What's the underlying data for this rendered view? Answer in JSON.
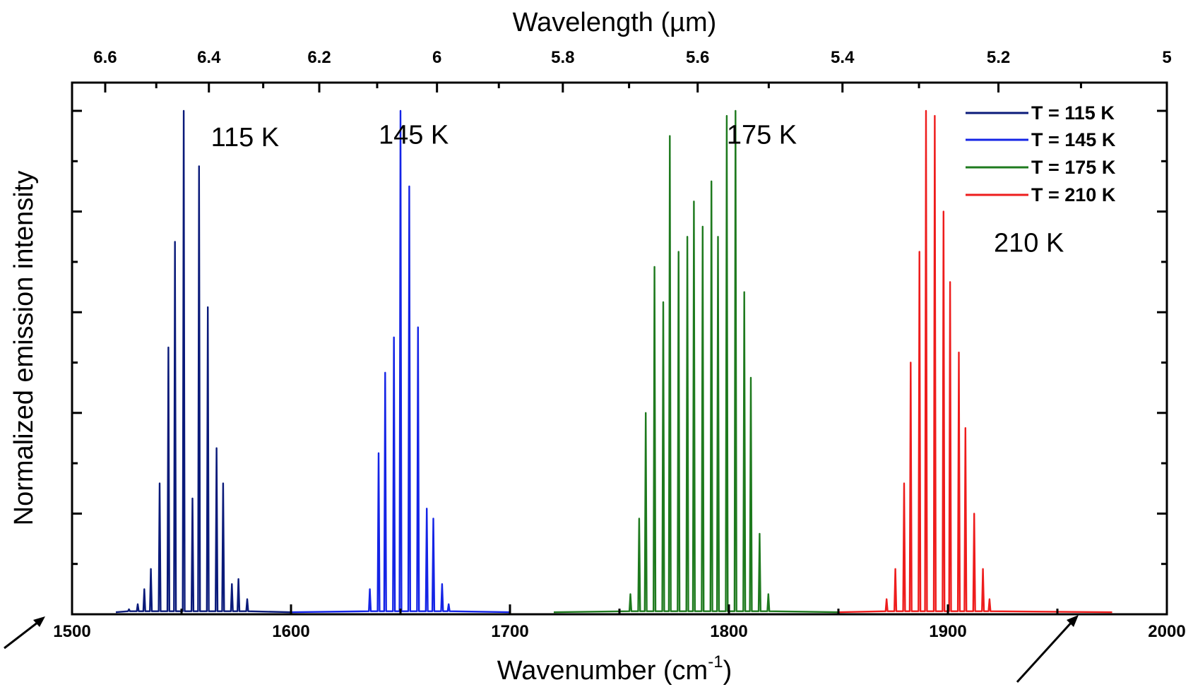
{
  "chart_data": {
    "type": "line",
    "xlabel": "Wavenumber (cm",
    "xlabel_superscript": "-1",
    "xlabel_suffix": ")",
    "x2label": "Wavelength (µm)",
    "ylabel": "Normalized emission intensity",
    "xlim": [
      1500,
      2000
    ],
    "ylim": [
      0,
      1
    ],
    "x_ticks": [
      "1500",
      "1600",
      "1700",
      "1800",
      "1900",
      "2000"
    ],
    "x2_ticks": [
      "6.6",
      "6.4",
      "6.2",
      "6",
      "5.8",
      "5.6",
      "5.4",
      "5.2",
      "5"
    ],
    "x2_tick_values": [
      6.6,
      6.4,
      6.2,
      6.0,
      5.8,
      5.6,
      5.4,
      5.2,
      5.0
    ],
    "legend_position": "top-right",
    "legend": [
      {
        "label": "T = 115 K",
        "color": "#0a1a7a"
      },
      {
        "label": "T = 145 K",
        "color": "#1424e6"
      },
      {
        "label": "T = 175 K",
        "color": "#1e7a1e"
      },
      {
        "label": "T = 210 K",
        "color": "#ee1c1c"
      }
    ],
    "annotations": [
      {
        "text": "115 K",
        "x": 1579,
        "y": 0.93
      },
      {
        "text": "145 K",
        "x": 1656,
        "y": 0.935
      },
      {
        "text": "175 K",
        "x": 1815,
        "y": 0.935
      },
      {
        "text": "210 K",
        "x": 1937,
        "y": 0.72
      }
    ],
    "series": [
      {
        "name": "T = 115 K",
        "color": "#0a1a7a",
        "mode_spacing": 3.6,
        "x_range": [
          1520,
          1600
        ],
        "peaks": [
          [
            1526,
            0.01
          ],
          [
            1530,
            0.02
          ],
          [
            1533,
            0.05
          ],
          [
            1536,
            0.09
          ],
          [
            1540,
            0.26
          ],
          [
            1544,
            0.53
          ],
          [
            1547,
            0.74
          ],
          [
            1551,
            1.0
          ],
          [
            1555,
            0.23
          ],
          [
            1558,
            0.89
          ],
          [
            1562,
            0.61
          ],
          [
            1566,
            0.33
          ],
          [
            1569,
            0.26
          ],
          [
            1573,
            0.06
          ],
          [
            1576,
            0.07
          ],
          [
            1580,
            0.03
          ]
        ]
      },
      {
        "name": "T = 145 K",
        "color": "#1424e6",
        "mode_spacing": 3.6,
        "x_range": [
          1600,
          1700
        ],
        "peaks": [
          [
            1636,
            0.05
          ],
          [
            1640,
            0.32
          ],
          [
            1643,
            0.48
          ],
          [
            1647,
            0.55
          ],
          [
            1650,
            1.0
          ],
          [
            1654,
            0.85
          ],
          [
            1658,
            0.57
          ],
          [
            1662,
            0.21
          ],
          [
            1665,
            0.19
          ],
          [
            1669,
            0.06
          ],
          [
            1672,
            0.02
          ]
        ]
      },
      {
        "name": "T = 175 K",
        "color": "#1e7a1e",
        "mode_spacing": 3.7,
        "x_range": [
          1720,
          1850
        ],
        "peaks": [
          [
            1755,
            0.04
          ],
          [
            1759,
            0.19
          ],
          [
            1762,
            0.4
          ],
          [
            1766,
            0.69
          ],
          [
            1770,
            0.62
          ],
          [
            1773,
            0.95
          ],
          [
            1777,
            0.72
          ],
          [
            1781,
            0.75
          ],
          [
            1784,
            0.82
          ],
          [
            1788,
            0.77
          ],
          [
            1792,
            0.86
          ],
          [
            1795,
            0.75
          ],
          [
            1799,
            0.99
          ],
          [
            1803,
            1.0
          ],
          [
            1807,
            0.64
          ],
          [
            1810,
            0.47
          ],
          [
            1814,
            0.16
          ],
          [
            1818,
            0.04
          ]
        ]
      },
      {
        "name": "T = 210 K",
        "color": "#ee1c1c",
        "mode_spacing": 3.6,
        "x_range": [
          1850,
          1975
        ],
        "peaks": [
          [
            1872,
            0.03
          ],
          [
            1876,
            0.09
          ],
          [
            1880,
            0.26
          ],
          [
            1883,
            0.5
          ],
          [
            1887,
            0.72
          ],
          [
            1890,
            1.0
          ],
          [
            1894,
            0.99
          ],
          [
            1898,
            0.8
          ],
          [
            1901,
            0.66
          ],
          [
            1905,
            0.52
          ],
          [
            1908,
            0.37
          ],
          [
            1912,
            0.2
          ],
          [
            1916,
            0.09
          ],
          [
            1919,
            0.03
          ]
        ]
      }
    ]
  }
}
